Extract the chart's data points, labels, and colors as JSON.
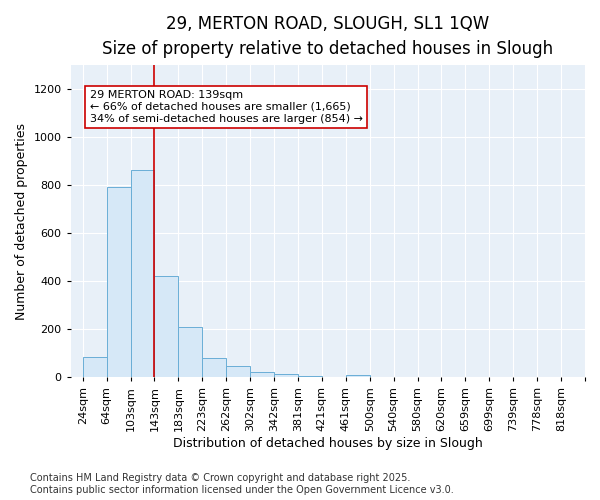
{
  "title_line1": "29, MERTON ROAD, SLOUGH, SL1 1QW",
  "title_line2": "Size of property relative to detached houses in Slough",
  "xlabel": "Distribution of detached houses by size in Slough",
  "ylabel": "Number of detached properties",
  "categories": [
    "24sqm",
    "64sqm",
    "103sqm",
    "143sqm",
    "183sqm",
    "223sqm",
    "262sqm",
    "302sqm",
    "342sqm",
    "381sqm",
    "421sqm",
    "461sqm",
    "500sqm",
    "540sqm",
    "580sqm",
    "620sqm",
    "659sqm",
    "699sqm",
    "739sqm",
    "778sqm",
    "818sqm"
  ],
  "bin_edges": [
    24,
    64,
    103,
    143,
    183,
    223,
    262,
    302,
    342,
    381,
    421,
    461,
    500,
    540,
    580,
    620,
    659,
    699,
    739,
    778,
    818,
    858
  ],
  "hist_values": [
    85,
    793,
    862,
    420,
    208,
    82,
    48,
    20,
    12,
    7,
    1,
    10,
    0,
    0,
    0,
    0,
    0,
    0,
    0,
    0,
    0
  ],
  "bar_color": "#d6e8f7",
  "bar_edge_color": "#6aaed6",
  "vline_x": 143,
  "vline_color": "#cc0000",
  "annotation_text": "29 MERTON ROAD: 139sqm\n← 66% of detached houses are smaller (1,665)\n34% of semi-detached houses are larger (854) →",
  "annotation_box_color": "white",
  "annotation_box_edge_color": "#cc0000",
  "ylim_max": 1300,
  "yticks": [
    0,
    200,
    400,
    600,
    800,
    1000,
    1200
  ],
  "plot_bg_color": "#e8f0f8",
  "fig_bg_color": "#ffffff",
  "grid_color": "#ffffff",
  "footer_text": "Contains HM Land Registry data © Crown copyright and database right 2025.\nContains public sector information licensed under the Open Government Licence v3.0.",
  "title_fontsize": 12,
  "subtitle_fontsize": 10.5,
  "ylabel_fontsize": 9,
  "xlabel_fontsize": 9,
  "tick_fontsize": 8,
  "annotation_fontsize": 8,
  "footer_fontsize": 7
}
